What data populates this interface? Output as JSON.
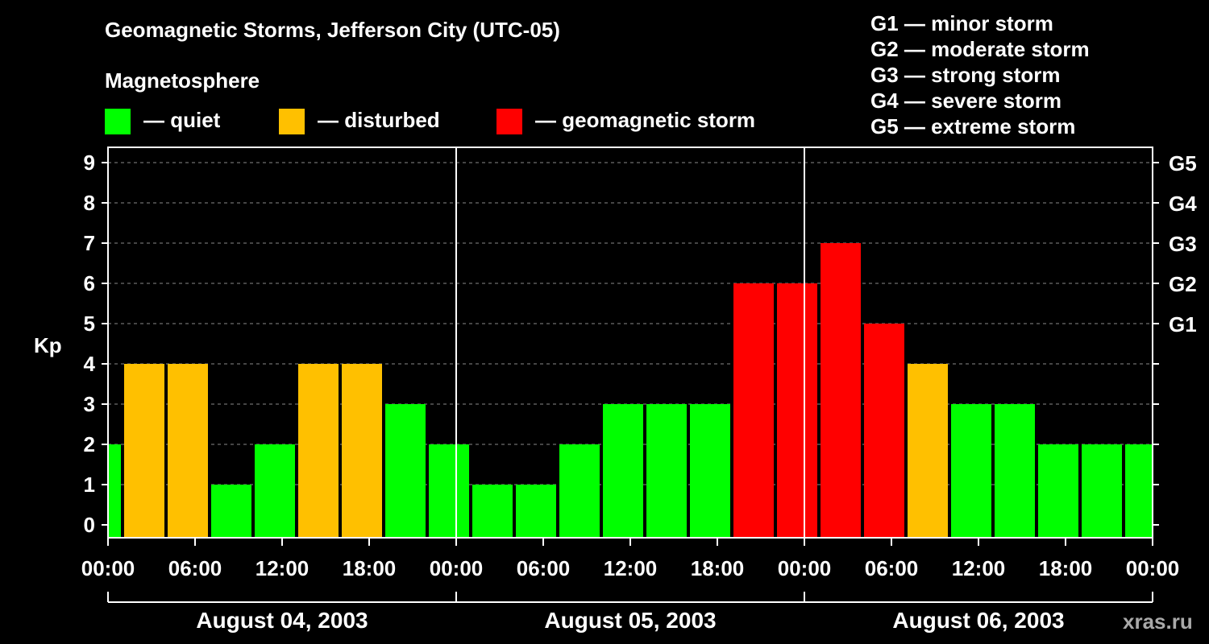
{
  "header": {
    "title": "Geomagnetic Storms, Jefferson City (UTC-05)",
    "subtitle": "Magnetosphere",
    "watermark": "xras.ru"
  },
  "legend": [
    {
      "label": "— quiet",
      "color": "#00ff00"
    },
    {
      "label": "— disturbed",
      "color": "#ffc000"
    },
    {
      "label": "— geomagnetic storm",
      "color": "#ff0000"
    }
  ],
  "storm_scale": [
    "G1 — minor storm",
    "G2 — moderate storm",
    "G3 — strong storm",
    "G4 — severe storm",
    "G5 — extreme storm"
  ],
  "chart_data": {
    "type": "bar",
    "title": "Geomagnetic Storms, Jefferson City (UTC-05)",
    "ylabel": "Kp",
    "ylim": [
      0,
      9
    ],
    "yticks": [
      0,
      1,
      2,
      3,
      4,
      5,
      6,
      7,
      8,
      9
    ],
    "right_axis": [
      {
        "level": 5,
        "label": "G1"
      },
      {
        "level": 6,
        "label": "G2"
      },
      {
        "level": 7,
        "label": "G3"
      },
      {
        "level": 8,
        "label": "G4"
      },
      {
        "level": 9,
        "label": "G5"
      }
    ],
    "x_hour_range": [
      0,
      72
    ],
    "bar_start_hours": [
      -2,
      1,
      4,
      7,
      10,
      13,
      16,
      19,
      22,
      25,
      28,
      31,
      34,
      37,
      40,
      43,
      46,
      49,
      52,
      55,
      58,
      61,
      64,
      67,
      70
    ],
    "bar_width_hours": 3,
    "values": [
      2,
      4,
      4,
      1,
      2,
      4,
      4,
      3,
      2,
      1,
      1,
      2,
      3,
      3,
      3,
      6,
      6,
      7,
      5,
      4,
      3,
      3,
      2,
      2,
      2
    ],
    "xtick_hours": [
      0,
      6,
      12,
      18,
      24,
      30,
      36,
      42,
      48,
      54,
      60,
      66,
      72
    ],
    "xtick_labels": [
      "00:00",
      "06:00",
      "12:00",
      "18:00",
      "00:00",
      "06:00",
      "12:00",
      "18:00",
      "00:00",
      "06:00",
      "12:00",
      "18:00",
      "00:00"
    ],
    "day_divider_hours": [
      24,
      48
    ],
    "days": [
      {
        "label": "August 04, 2003",
        "start_hour": 0,
        "end_hour": 24
      },
      {
        "label": "August 05, 2003",
        "start_hour": 24,
        "end_hour": 48
      },
      {
        "label": "August 06, 2003",
        "start_hour": 48,
        "end_hour": 72
      }
    ],
    "colors": {
      "quiet": "#00ff00",
      "disturbed": "#ffc000",
      "storm": "#ff0000"
    },
    "grid": true
  }
}
